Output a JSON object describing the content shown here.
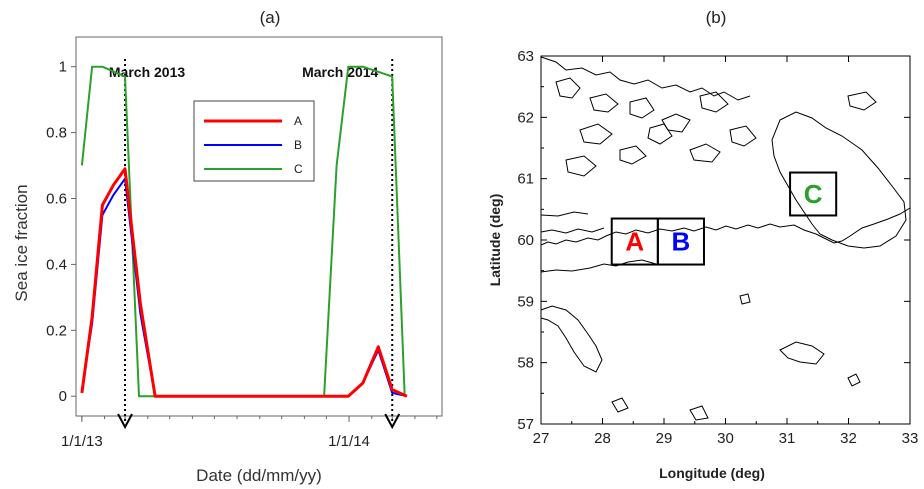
{
  "chart_data": [
    {
      "panel_label": "(a)",
      "type": "line",
      "xlabel": "Date (dd/mm/yy)",
      "ylabel": "Sea ice fraction",
      "x_tick_labels": [
        "1/1/13",
        "1/1/14"
      ],
      "y_ticks": [
        0,
        0.2,
        0.4,
        0.6,
        0.8,
        1
      ],
      "ylim": [
        -0.06,
        1.09
      ],
      "xlim": [
        "2012-12-24",
        "2014-05-08"
      ],
      "grid": false,
      "legend": "top-center",
      "annotations": [
        {
          "text": "March 2013",
          "x": "2013-03-01"
        },
        {
          "text": "March 2014",
          "x": "2014-03-01"
        }
      ],
      "series": [
        {
          "name": "A",
          "color": "#ff0000",
          "points": [
            [
              "2013-01-01",
              0.01
            ],
            [
              "2013-01-15",
              0.24
            ],
            [
              "2013-01-29",
              0.58
            ],
            [
              "2013-02-13",
              0.64
            ],
            [
              "2013-03-01",
              0.69
            ],
            [
              "2013-03-22",
              0.28
            ],
            [
              "2013-04-11",
              0.0
            ],
            [
              "2013-12-01",
              0.0
            ],
            [
              "2013-12-31",
              0.0
            ],
            [
              "2014-01-20",
              0.04
            ],
            [
              "2014-02-10",
              0.15
            ],
            [
              "2014-03-01",
              0.02
            ],
            [
              "2014-03-21",
              0.0
            ]
          ]
        },
        {
          "name": "B",
          "color": "#0000ff",
          "points": [
            [
              "2013-01-01",
              0.02
            ],
            [
              "2013-01-15",
              0.22
            ],
            [
              "2013-01-29",
              0.55
            ],
            [
              "2013-02-13",
              0.61
            ],
            [
              "2013-03-01",
              0.66
            ],
            [
              "2013-03-22",
              0.25
            ],
            [
              "2013-04-11",
              0.0
            ],
            [
              "2013-12-01",
              0.0
            ],
            [
              "2013-12-31",
              0.0
            ],
            [
              "2014-01-20",
              0.04
            ],
            [
              "2014-02-10",
              0.14
            ],
            [
              "2014-03-01",
              0.01
            ],
            [
              "2014-03-21",
              0.0
            ]
          ]
        },
        {
          "name": "C",
          "color": "#2ca02c",
          "points": [
            [
              "2013-01-01",
              0.7
            ],
            [
              "2013-01-15",
              1.0
            ],
            [
              "2013-01-29",
              1.0
            ],
            [
              "2013-03-01",
              0.97
            ],
            [
              "2013-03-20",
              0.0
            ],
            [
              "2013-11-28",
              0.0
            ],
            [
              "2013-12-15",
              0.7
            ],
            [
              "2013-12-31",
              1.0
            ],
            [
              "2014-01-20",
              1.0
            ],
            [
              "2014-03-01",
              0.97
            ],
            [
              "2014-03-18",
              0.0
            ]
          ]
        }
      ]
    },
    {
      "panel_label": "(b)",
      "type": "map",
      "xlabel": "Longitude (deg)",
      "ylabel": "Latitude (deg)",
      "xlim": [
        27,
        33
      ],
      "ylim": [
        57,
        63
      ],
      "x_ticks": [
        27,
        28,
        29,
        30,
        31,
        32,
        33
      ],
      "y_ticks": [
        57,
        58,
        59,
        60,
        61,
        62,
        63
      ],
      "regions": [
        {
          "name": "A",
          "color": "#ff0000",
          "lon": [
            28.15,
            28.9
          ],
          "lat": [
            59.6,
            60.35
          ]
        },
        {
          "name": "B",
          "color": "#0000ff",
          "lon": [
            28.9,
            29.65
          ],
          "lat": [
            59.6,
            60.35
          ]
        },
        {
          "name": "C",
          "color": "#2ca02c",
          "lon": [
            31.05,
            31.8
          ],
          "lat": [
            60.4,
            61.1
          ]
        }
      ]
    }
  ]
}
